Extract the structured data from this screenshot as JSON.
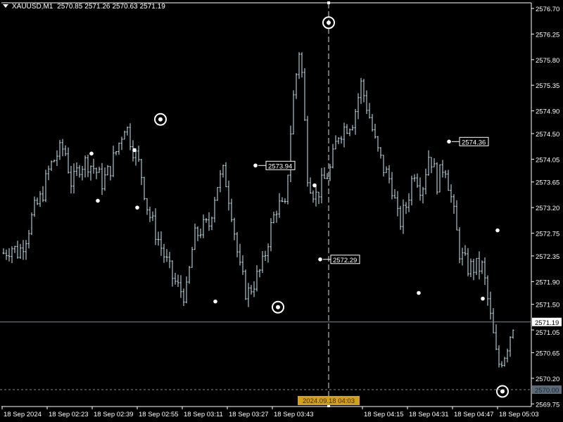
{
  "header": {
    "symbol": "XAUUSD,M1",
    "open": "2570.85",
    "high": "2571.26",
    "low": "2570.63",
    "close": "2571.19"
  },
  "colors": {
    "background": "#000000",
    "bars": "#cfe8f0",
    "axis": "#ffffff",
    "bid_line": "#7e8c99",
    "crosshair_label": "#d4a017",
    "price_label_bg": "#ffffff",
    "level_label_bg": "#5c6b78"
  },
  "price_axis": {
    "ticks": [
      "2576.70",
      "2576.25",
      "2575.80",
      "2575.35",
      "2574.90",
      "2574.50",
      "2574.05",
      "2573.65",
      "2573.20",
      "2572.75",
      "2572.35",
      "2571.90",
      "2571.50",
      "2571.05",
      "2570.65",
      "2570.20",
      "2569.75"
    ],
    "range": [
      2569.75,
      2576.7
    ],
    "current_price": "2571.19",
    "level_price": "2570.00"
  },
  "time_axis": {
    "labels": [
      "18 Sep 2024",
      "18 Sep 02:23",
      "18 Sep 02:39",
      "18 Sep 02:55",
      "18 Sep 03:11",
      "18 Sep 03:27",
      "18 Sep 03:43",
      "18 Sep 04:15",
      "18 Sep 04:31",
      "18 Sep 04:47",
      "18 Sep 05:03"
    ],
    "crosshair_time": "2024.09.18 04:03"
  },
  "chart_data": {
    "type": "bar",
    "timeframe": "M1",
    "approx_close_path": [
      2572.4,
      2572.52,
      2572.4,
      2572.71,
      2573.14,
      2573.39,
      2573.88,
      2574.13,
      2574.26,
      2573.58,
      2573.95,
      2574.01,
      2573.88,
      2573.64,
      2573.88,
      2574.26,
      2574.69,
      2574.26,
      2573.88,
      2573.14,
      2572.77,
      2572.4,
      2572.03,
      2571.78,
      2571.66,
      2572.65,
      2572.83,
      2572.89,
      2573.58,
      2573.83,
      2573.14,
      2572.15,
      2571.66,
      2571.9,
      2572.15,
      2572.77,
      2573.26,
      2573.14,
      2575.0,
      2576.11,
      2573.76,
      2573.39,
      2573.64,
      2573.88,
      2574.5,
      2574.63,
      2574.75,
      2575.37,
      2574.87,
      2574.26,
      2573.88,
      2573.64,
      2572.89,
      2573.26,
      2573.88,
      2573.51,
      2574.19,
      2573.64,
      2574.01,
      2573.26,
      2572.4,
      2572.15,
      2572.15,
      2572.15,
      2571.29,
      2570.42,
      2570.67,
      2571.16
    ],
    "swing_labels": [
      {
        "price": "2573.94",
        "time": "18 Sep 03:31"
      },
      {
        "price": "2572.29",
        "time": "18 Sep 03:53"
      },
      {
        "price": "2574.36",
        "time": "18 Sep 04:46"
      }
    ],
    "swing_points": [
      2574.15,
      2573.32,
      2574.21,
      2573.2,
      2571.55,
      2573.59,
      2571.7,
      2571.6,
      2572.8
    ],
    "circled_extremes": [
      2574.75,
      2576.45,
      2571.45,
      2569.97
    ]
  }
}
